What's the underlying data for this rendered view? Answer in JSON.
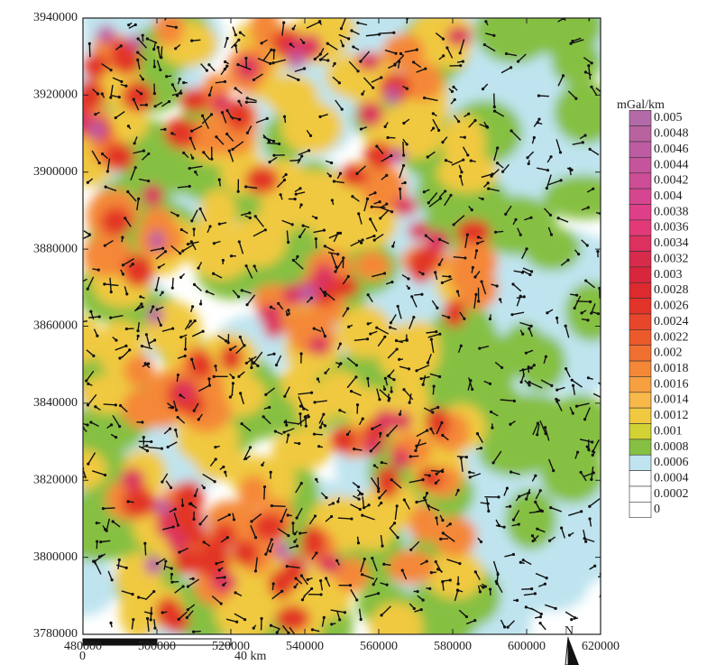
{
  "map": {
    "xlim": [
      480000,
      620000
    ],
    "ylim": [
      3780000,
      3940000
    ],
    "xticks": [
      480000,
      500000,
      520000,
      540000,
      560000,
      580000,
      600000,
      620000
    ],
    "yticks": [
      3780000,
      3800000,
      3820000,
      3840000,
      3860000,
      3880000,
      3900000,
      3920000,
      3940000
    ]
  },
  "colorbar": {
    "label": "mGal/km",
    "ticks": [
      0.005,
      0.0048,
      0.0046,
      0.0044,
      0.0042,
      0.004,
      0.0038,
      0.0036,
      0.0034,
      0.0032,
      0.003,
      0.0028,
      0.0026,
      0.0024,
      0.0022,
      0.002,
      0.0018,
      0.0016,
      0.0014,
      0.0012,
      0.001,
      0.0008,
      0.0006,
      0.0004,
      0.0002,
      0
    ],
    "colors": [
      "#b46aa9",
      "#b8639f",
      "#bd5ca3",
      "#c4559c",
      "#cc4d96",
      "#d6458f",
      "#df3f88",
      "#e23a78",
      "#dc305f",
      "#d82b4c",
      "#d8263d",
      "#dc2a2f",
      "#e23428",
      "#e8462a",
      "#ec5a2b",
      "#f07031",
      "#f48838",
      "#f6a041",
      "#f8b84a",
      "#f0c940",
      "#d3d234",
      "#86c042",
      "#bfe4ef",
      "#ffffff",
      "#ffffff",
      "#ffffff"
    ]
  },
  "scale_bar": {
    "labels": [
      "0",
      "40 km"
    ]
  },
  "north": "N"
}
